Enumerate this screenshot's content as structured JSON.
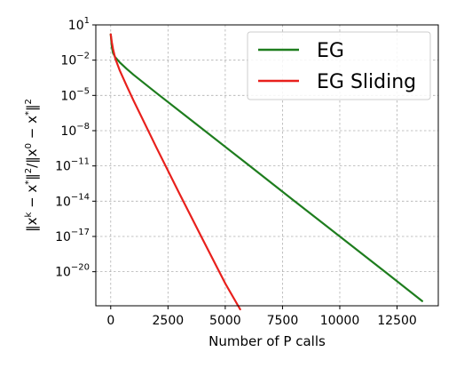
{
  "chart_data": {
    "type": "line",
    "title": "",
    "xlabel": "Number of P calls",
    "ylabel": "‖x^k − x*‖² / ‖x⁰ − x*‖²",
    "ylabel_parts": {
      "a": "‖x",
      "a_sup": "k",
      "b": " − x",
      "b_sup": "*",
      "c": "‖",
      "c_sup": "2",
      "d": "/‖x",
      "d_sup": "0",
      "e": " − x",
      "e_sup": "*",
      "f": "‖",
      "f_sup": "2"
    },
    "x_ticks": [
      {
        "value": 0,
        "label": "0"
      },
      {
        "value": 2500,
        "label": "2500"
      },
      {
        "value": 5000,
        "label": "5000"
      },
      {
        "value": 7500,
        "label": "7500"
      },
      {
        "value": 10000,
        "label": "10000"
      },
      {
        "value": 12500,
        "label": "12500"
      }
    ],
    "y_ticks": [
      {
        "exp": 1,
        "base": "10",
        "sup": "1"
      },
      {
        "exp": -2,
        "base": "10",
        "sup": "−2"
      },
      {
        "exp": -5,
        "base": "10",
        "sup": "−5"
      },
      {
        "exp": -8,
        "base": "10",
        "sup": "−8"
      },
      {
        "exp": -11,
        "base": "10",
        "sup": "−11"
      },
      {
        "exp": -14,
        "base": "10",
        "sup": "−14"
      },
      {
        "exp": -17,
        "base": "10",
        "sup": "−17"
      },
      {
        "exp": -20,
        "base": "10",
        "sup": "−20"
      }
    ],
    "xlim": [
      -650,
      14300
    ],
    "ylim_log10": [
      1,
      -22.9
    ],
    "yscale": "log",
    "grid": true,
    "legend_position": "top-right",
    "series": [
      {
        "name": "EG",
        "color": "#1e7d1e",
        "x": [
          0,
          50,
          100,
          200,
          400,
          700,
          1000,
          2000,
          4000,
          6000,
          8000,
          10000,
          12000,
          13600
        ],
        "y_log10": [
          0.2,
          -0.9,
          -1.4,
          -1.75,
          -2.2,
          -2.75,
          -3.25,
          -4.8,
          -7.85,
          -10.9,
          -13.95,
          -17.0,
          -20.05,
          -22.5
        ]
      },
      {
        "name": "EG Sliding",
        "color": "#e8201c",
        "x": [
          0,
          50,
          100,
          200,
          400,
          700,
          1000,
          1500,
          2000,
          3000,
          4000,
          5000,
          5650
        ],
        "y_log10": [
          0.2,
          -0.5,
          -1.05,
          -1.85,
          -2.9,
          -4.2,
          -5.45,
          -7.45,
          -9.45,
          -13.35,
          -17.2,
          -21.0,
          -23.2
        ]
      }
    ]
  }
}
